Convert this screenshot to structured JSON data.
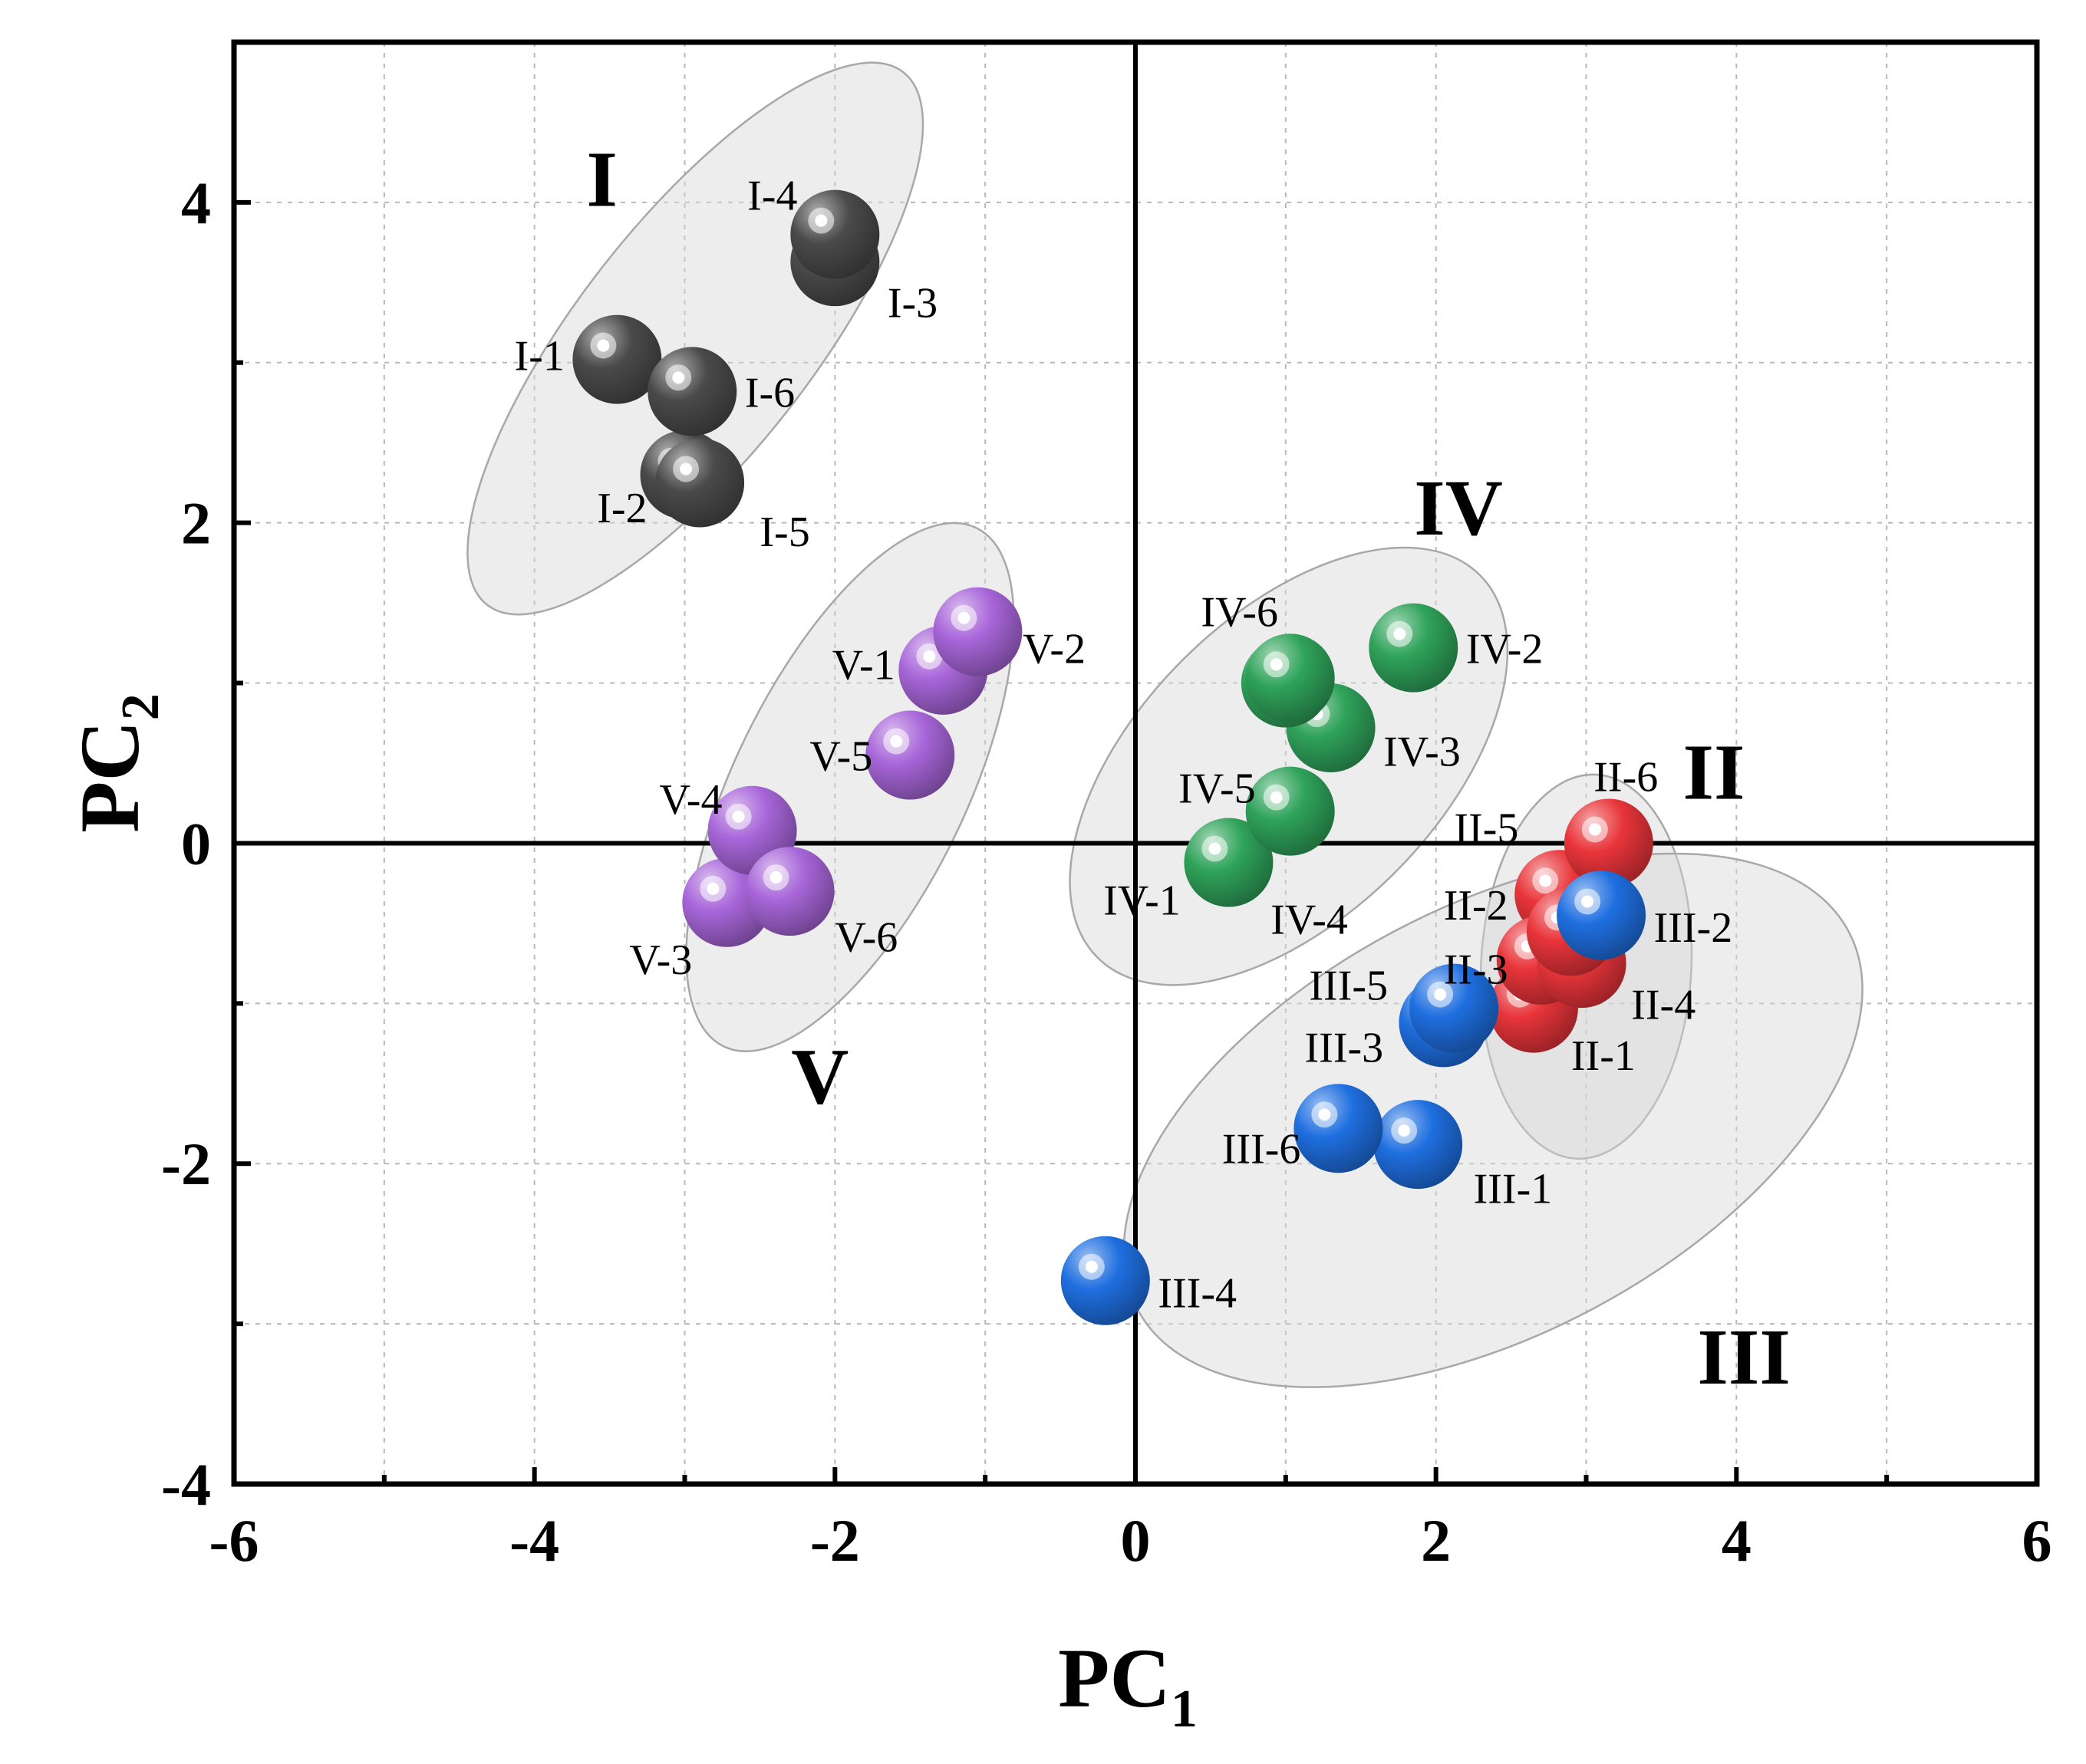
{
  "chart_data": {
    "type": "scatter",
    "title": "",
    "xlabel": "PC",
    "xlabel_sub": "1",
    "ylabel": "PC",
    "ylabel_sub": "2",
    "xlim": [
      -6,
      6
    ],
    "ylim": [
      -4,
      5
    ],
    "grid": true,
    "x_ticks": [
      -6,
      -4,
      -2,
      0,
      2,
      4,
      6
    ],
    "x_tick_labels": [
      "-6",
      "-4",
      "-2",
      "0",
      "2",
      "4",
      "6"
    ],
    "y_ticks": [
      -4,
      -2,
      0,
      2,
      4
    ],
    "y_tick_labels": [
      "-4",
      "-2",
      "0",
      "2",
      "4"
    ],
    "colors": {
      "I": "#4a4a4a",
      "II": "#e8353a",
      "III": "#1f6fe0",
      "IV": "#2fa35a",
      "V": "#a866d9",
      "ellipse_fill": "#d6d6d6",
      "ellipse_stroke": "#a8a8a8"
    },
    "groups": [
      {
        "name": "I",
        "label_x": -3.55,
        "label_y": 4.15,
        "ellipse": {
          "cx": -2.93,
          "cy": 3.15,
          "rx": 2.25,
          "ry": 0.78,
          "angle_deg": 52
        }
      },
      {
        "name": "II",
        "label_x": 3.85,
        "label_y": 0.45,
        "ellipse": {
          "cx": 3.0,
          "cy": -0.77,
          "rx": 1.28,
          "ry": 0.7,
          "angle_deg": 87
        }
      },
      {
        "name": "III",
        "label_x": 4.05,
        "label_y": -3.2,
        "ellipse": {
          "cx": 2.38,
          "cy": -1.73,
          "rx": 2.68,
          "ry": 1.42,
          "angle_deg": 28
        }
      },
      {
        "name": "IV",
        "label_x": 2.15,
        "label_y": 2.1,
        "ellipse": {
          "cx": 1.02,
          "cy": 0.48,
          "rx": 1.8,
          "ry": 1.0,
          "angle_deg": 45
        }
      },
      {
        "name": "V",
        "label_x": -2.1,
        "label_y": -1.45,
        "ellipse": {
          "cx": -1.9,
          "cy": 0.35,
          "rx": 1.92,
          "ry": 0.77,
          "angle_deg": 64
        }
      }
    ],
    "points": [
      {
        "label": "I-1",
        "group": "I",
        "x": -3.45,
        "y": 3.02,
        "lx": -3.8,
        "ly": 3.05,
        "anchor": "end"
      },
      {
        "label": "I-2",
        "group": "I",
        "x": -3.0,
        "y": 2.3,
        "lx": -3.25,
        "ly": 2.1,
        "anchor": "end"
      },
      {
        "label": "I-3",
        "group": "I",
        "x": -2.0,
        "y": 3.63,
        "lx": -1.65,
        "ly": 3.38,
        "anchor": "start"
      },
      {
        "label": "I-4",
        "group": "I",
        "x": -2.0,
        "y": 3.8,
        "lx": -2.25,
        "ly": 4.05,
        "anchor": "end"
      },
      {
        "label": "I-5",
        "group": "I",
        "x": -2.9,
        "y": 2.25,
        "lx": -2.5,
        "ly": 1.95,
        "anchor": "start"
      },
      {
        "label": "I-6",
        "group": "I",
        "x": -2.95,
        "y": 2.82,
        "lx": -2.6,
        "ly": 2.82,
        "anchor": "start"
      },
      {
        "label": "II-1",
        "group": "II",
        "x": 2.65,
        "y": -1.03,
        "lx": 2.9,
        "ly": -1.32,
        "anchor": "start"
      },
      {
        "label": "II-2",
        "group": "II",
        "x": 2.82,
        "y": -0.32,
        "lx": 2.48,
        "ly": -0.38,
        "anchor": "end"
      },
      {
        "label": "II-3",
        "group": "II",
        "x": 2.7,
        "y": -0.73,
        "lx": 2.48,
        "ly": -0.78,
        "anchor": "end"
      },
      {
        "label": "II-4",
        "group": "II",
        "x": 2.97,
        "y": -0.75,
        "lx": 3.3,
        "ly": -1.0,
        "anchor": "start"
      },
      {
        "label": "II-5",
        "group": "II",
        "x": 2.9,
        "y": -0.55,
        "lx": 2.55,
        "ly": 0.1,
        "anchor": "end"
      },
      {
        "label": "II-6",
        "group": "II",
        "x": 3.15,
        "y": 0.0,
        "lx": 3.05,
        "ly": 0.42,
        "anchor": "start"
      },
      {
        "label": "III-1",
        "group": "III",
        "x": 1.88,
        "y": -1.88,
        "lx": 2.25,
        "ly": -2.15,
        "anchor": "start"
      },
      {
        "label": "III-2",
        "group": "III",
        "x": 3.1,
        "y": -0.45,
        "lx": 3.45,
        "ly": -0.52,
        "anchor": "start"
      },
      {
        "label": "III-3",
        "group": "III",
        "x": 2.05,
        "y": -1.12,
        "lx": 1.65,
        "ly": -1.27,
        "anchor": "end"
      },
      {
        "label": "III-4",
        "group": "III",
        "x": -0.2,
        "y": -2.73,
        "lx": 0.15,
        "ly": -2.8,
        "anchor": "start"
      },
      {
        "label": "III-5",
        "group": "III",
        "x": 2.12,
        "y": -1.03,
        "lx": 1.68,
        "ly": -0.88,
        "anchor": "end"
      },
      {
        "label": "III-6",
        "group": "III",
        "x": 1.35,
        "y": -1.78,
        "lx": 1.1,
        "ly": -1.9,
        "anchor": "end"
      },
      {
        "label": "IV-1",
        "group": "IV",
        "x": 0.62,
        "y": -0.12,
        "lx": 0.3,
        "ly": -0.35,
        "anchor": "end"
      },
      {
        "label": "IV-2",
        "group": "IV",
        "x": 1.85,
        "y": 1.22,
        "lx": 2.2,
        "ly": 1.22,
        "anchor": "start"
      },
      {
        "label": "IV-3",
        "group": "IV",
        "x": 1.3,
        "y": 0.72,
        "lx": 1.65,
        "ly": 0.58,
        "anchor": "start"
      },
      {
        "label": "IV-4",
        "group": "IV",
        "x": 1.03,
        "y": 0.2,
        "lx": 0.9,
        "ly": -0.47,
        "anchor": "start"
      },
      {
        "label": "IV-5",
        "group": "IV",
        "x": 1.0,
        "y": 1.0,
        "lx": 0.8,
        "ly": 0.35,
        "anchor": "end"
      },
      {
        "label": "IV-6",
        "group": "IV",
        "x": 1.03,
        "y": 1.03,
        "lx": 0.95,
        "ly": 1.45,
        "anchor": "end"
      },
      {
        "label": "V-1",
        "group": "V",
        "x": -1.28,
        "y": 1.08,
        "lx": -1.6,
        "ly": 1.12,
        "anchor": "end"
      },
      {
        "label": "V-2",
        "group": "V",
        "x": -1.05,
        "y": 1.32,
        "lx": -0.75,
        "ly": 1.22,
        "anchor": "start"
      },
      {
        "label": "V-3",
        "group": "V",
        "x": -2.72,
        "y": -0.37,
        "lx": -2.95,
        "ly": -0.72,
        "anchor": "end"
      },
      {
        "label": "V-4",
        "group": "V",
        "x": -2.55,
        "y": 0.08,
        "lx": -2.75,
        "ly": 0.28,
        "anchor": "end"
      },
      {
        "label": "V-5",
        "group": "V",
        "x": -1.5,
        "y": 0.55,
        "lx": -1.75,
        "ly": 0.55,
        "anchor": "end"
      },
      {
        "label": "V-6",
        "group": "V",
        "x": -2.3,
        "y": -0.3,
        "lx": -2.0,
        "ly": -0.58,
        "anchor": "start"
      }
    ]
  }
}
